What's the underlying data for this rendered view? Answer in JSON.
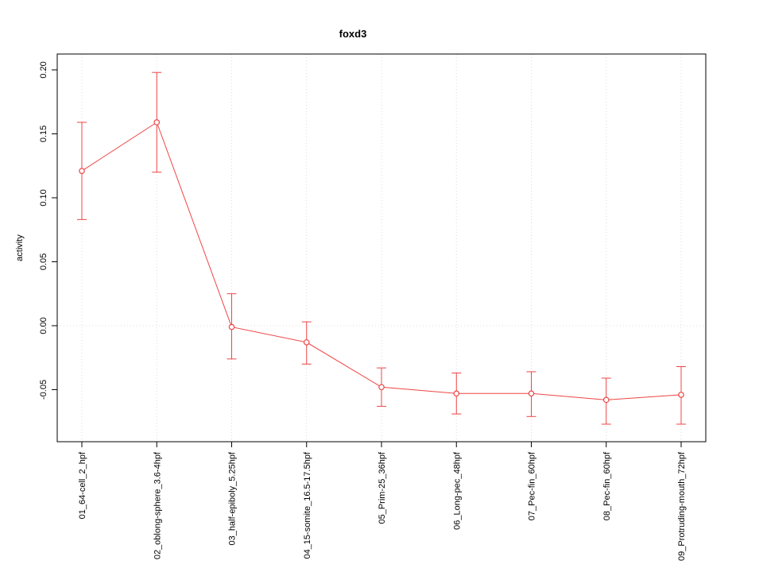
{
  "chart_data": {
    "type": "line",
    "title": "foxd3",
    "xlabel": "",
    "ylabel": "activity",
    "ylim": [
      -0.0907,
      0.2124
    ],
    "yticks": {
      "values": [
        -0.05,
        0.0,
        0.05,
        0.1,
        0.15,
        0.2
      ],
      "labels": [
        "-0.05",
        "0.00",
        "0.05",
        "0.10",
        "0.15",
        "0.20"
      ]
    },
    "grid": true,
    "legend": "none",
    "series_color": "#ef4444",
    "grid_color": "#dcdcdc",
    "axis_color": "#000000",
    "categories": [
      "01_64-cell_2_hpf",
      "02_oblong-sphere_3.6-4hpf",
      "03_half-epiboly_5.25hpf",
      "04_15-somite_16.5-17.5hpf",
      "05_Prim-25_36hpf",
      "06_Long-pec_48hpf",
      "07_Pec-fin_60hpf",
      "08_Pec-fin_60hpf",
      "09_Protruding-mouth_72hpf"
    ],
    "values": [
      0.121,
      0.159,
      -0.001,
      -0.013,
      -0.048,
      -0.053,
      -0.053,
      -0.058,
      -0.054
    ],
    "error_low": [
      0.083,
      0.12,
      -0.026,
      -0.03,
      -0.063,
      -0.069,
      -0.071,
      -0.077,
      -0.077
    ],
    "error_high": [
      0.159,
      0.198,
      0.025,
      0.003,
      -0.033,
      -0.037,
      -0.036,
      -0.041,
      -0.032
    ]
  }
}
